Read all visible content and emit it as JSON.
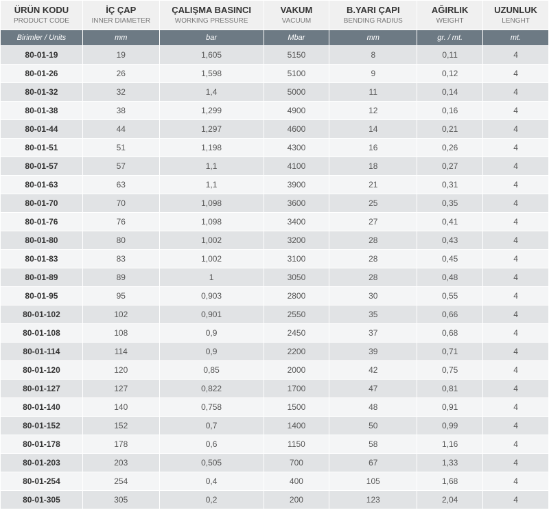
{
  "table": {
    "columns": [
      {
        "main": "ÜRÜN KODU",
        "sub": "PRODUCT CODE",
        "unit": "Birimler / Units"
      },
      {
        "main": "İÇ ÇAP",
        "sub": "INNER DIAMETER",
        "unit": "mm"
      },
      {
        "main": "ÇALIŞMA BASINCI",
        "sub": "WORKING PRESSURE",
        "unit": "bar"
      },
      {
        "main": "VAKUM",
        "sub": "VACUUM",
        "unit": "Mbar"
      },
      {
        "main": "B.YARI ÇAPI",
        "sub": "BENDING RADIUS",
        "unit": "mm"
      },
      {
        "main": "AĞIRLIK",
        "sub": "WEIGHT",
        "unit": "gr. / mt."
      },
      {
        "main": "UZUNLUK",
        "sub": "LENGHT",
        "unit": "mt."
      }
    ],
    "rows": [
      [
        "80-01-19",
        "19",
        "1,605",
        "5150",
        "8",
        "0,11",
        "4"
      ],
      [
        "80-01-26",
        "26",
        "1,598",
        "5100",
        "9",
        "0,12",
        "4"
      ],
      [
        "80-01-32",
        "32",
        "1,4",
        "5000",
        "11",
        "0,14",
        "4"
      ],
      [
        "80-01-38",
        "38",
        "1,299",
        "4900",
        "12",
        "0,16",
        "4"
      ],
      [
        "80-01-44",
        "44",
        "1,297",
        "4600",
        "14",
        "0,21",
        "4"
      ],
      [
        "80-01-51",
        "51",
        "1,198",
        "4300",
        "16",
        "0,26",
        "4"
      ],
      [
        "80-01-57",
        "57",
        "1,1",
        "4100",
        "18",
        "0,27",
        "4"
      ],
      [
        "80-01-63",
        "63",
        "1,1",
        "3900",
        "21",
        "0,31",
        "4"
      ],
      [
        "80-01-70",
        "70",
        "1,098",
        "3600",
        "25",
        "0,35",
        "4"
      ],
      [
        "80-01-76",
        "76",
        "1,098",
        "3400",
        "27",
        "0,41",
        "4"
      ],
      [
        "80-01-80",
        "80",
        "1,002",
        "3200",
        "28",
        "0,43",
        "4"
      ],
      [
        "80-01-83",
        "83",
        "1,002",
        "3100",
        "28",
        "0,45",
        "4"
      ],
      [
        "80-01-89",
        "89",
        "1",
        "3050",
        "28",
        "0,48",
        "4"
      ],
      [
        "80-01-95",
        "95",
        "0,903",
        "2800",
        "30",
        "0,55",
        "4"
      ],
      [
        "80-01-102",
        "102",
        "0,901",
        "2550",
        "35",
        "0,66",
        "4"
      ],
      [
        "80-01-108",
        "108",
        "0,9",
        "2450",
        "37",
        "0,68",
        "4"
      ],
      [
        "80-01-114",
        "114",
        "0,9",
        "2200",
        "39",
        "0,71",
        "4"
      ],
      [
        "80-01-120",
        "120",
        "0,85",
        "2000",
        "42",
        "0,75",
        "4"
      ],
      [
        "80-01-127",
        "127",
        "0,822",
        "1700",
        "47",
        "0,81",
        "4"
      ],
      [
        "80-01-140",
        "140",
        "0,758",
        "1500",
        "48",
        "0,91",
        "4"
      ],
      [
        "80-01-152",
        "152",
        "0,7",
        "1400",
        "50",
        "0,99",
        "4"
      ],
      [
        "80-01-178",
        "178",
        "0,6",
        "1150",
        "58",
        "1,16",
        "4"
      ],
      [
        "80-01-203",
        "203",
        "0,505",
        "700",
        "67",
        "1,33",
        "4"
      ],
      [
        "80-01-254",
        "254",
        "0,4",
        "400",
        "105",
        "1,68",
        "4"
      ],
      [
        "80-01-305",
        "305",
        "0,2",
        "200",
        "123",
        "2,04",
        "4"
      ]
    ],
    "colors": {
      "header_bg": "#f0f0f0",
      "units_bg": "#6d7a84",
      "units_text": "#ffffff",
      "row_even_bg": "#e1e3e5",
      "row_odd_bg": "#f4f5f6",
      "border": "#ffffff",
      "main_text": "#333333",
      "sub_text": "#777777",
      "cell_text": "#555555"
    }
  }
}
